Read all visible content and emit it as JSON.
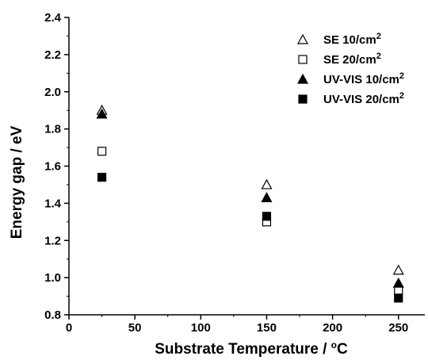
{
  "chart_data": {
    "type": "scatter",
    "xlabel": "Substrate Temperature / °C",
    "xlabel_parts": {
      "main": "Substrate Temperature / ",
      "superscript": "o",
      "unit": "C"
    },
    "ylabel": "Energy gap / eV",
    "xlim": [
      0,
      270
    ],
    "ylim": [
      0.8,
      2.4
    ],
    "x_ticks": [
      0,
      50,
      100,
      150,
      200,
      250
    ],
    "y_ticks": [
      0.8,
      1.0,
      1.2,
      1.4,
      1.6,
      1.8,
      2.0,
      2.2,
      2.4
    ],
    "x_tick_labels": [
      "0",
      "50",
      "100",
      "150",
      "200",
      "250"
    ],
    "y_tick_labels": [
      "0.8",
      "1.0",
      "1.2",
      "1.4",
      "1.6",
      "1.8",
      "2.0",
      "2.2",
      "2.4"
    ],
    "grid": false,
    "legend_position": "top-right",
    "series": [
      {
        "name": "SE 10/cm2",
        "label_main": "SE 10/cm",
        "label_sup": "2",
        "marker": "open-triangle",
        "x": [
          25,
          150,
          250
        ],
        "y": [
          1.9,
          1.5,
          1.04
        ]
      },
      {
        "name": "SE 20/cm2",
        "label_main": "SE 20/cm",
        "label_sup": "2",
        "marker": "open-square",
        "x": [
          25,
          150,
          250
        ],
        "y": [
          1.68,
          1.3,
          0.93
        ]
      },
      {
        "name": "UV-VIS 10/cm2",
        "label_main": "UV-VIS 10/cm",
        "label_sup": "2",
        "marker": "filled-triangle",
        "x": [
          25,
          150,
          250
        ],
        "y": [
          1.88,
          1.43,
          0.97
        ]
      },
      {
        "name": "UV-VIS 20/cm2",
        "label_main": "UV-VIS 20/cm",
        "label_sup": "2",
        "marker": "filled-square",
        "x": [
          25,
          150,
          250
        ],
        "y": [
          1.54,
          1.33,
          0.89
        ]
      }
    ]
  }
}
